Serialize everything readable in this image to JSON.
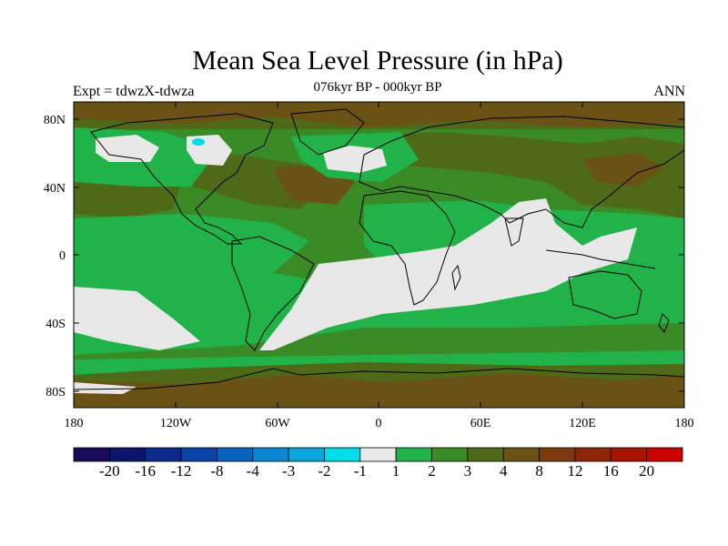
{
  "title": "Mean Sea Level Pressure (in hPa)",
  "subtitle": "076kyr BP - 000kyr BP",
  "expt_label": "Expt = tdwzX-tdwza",
  "season_label": "ANN",
  "lat_ticks": [
    "80N",
    "40N",
    "0",
    "40S",
    "80S"
  ],
  "lon_ticks": [
    "180",
    "120W",
    "60W",
    "0",
    "60E",
    "120E",
    "180"
  ],
  "colorbar": {
    "colors": [
      "#1a0a5e",
      "#0c1470",
      "#0a2a8c",
      "#0a44a8",
      "#0a62c0",
      "#0a86d2",
      "#0aa6de",
      "#00dce8",
      "#e8e8e8",
      "#22b24a",
      "#3a8a26",
      "#4e6a18",
      "#6a5216",
      "#7c3a0e",
      "#8e2408",
      "#aa1206",
      "#cc0000"
    ],
    "labels": [
      "-20",
      "-16",
      "-12",
      "-8",
      "-4",
      "-3",
      "-2",
      "-1",
      "1",
      "2",
      "3",
      "4",
      "8",
      "12",
      "16",
      "20"
    ]
  },
  "palette": {
    "neutral": "#e8e8e8",
    "green": "#22b24a",
    "darkgreen": "#3a8a26",
    "olive": "#4e6a18",
    "brown": "#6a5216",
    "cyan": "#00dce8",
    "coastline": "#000000"
  }
}
